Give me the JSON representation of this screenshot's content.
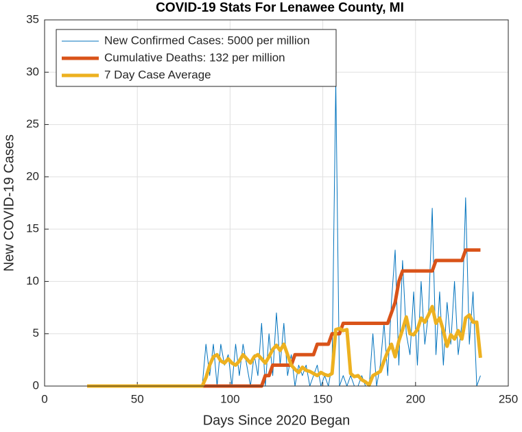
{
  "chart_data": {
    "type": "line",
    "title": "COVID-19 Stats For Lenawee County, MI",
    "x_label": "Days Since 2020 Began",
    "y_label": "New COVID-19 Cases",
    "xlim": [
      0,
      250
    ],
    "xticks": [
      0,
      50,
      100,
      150,
      200,
      250
    ],
    "ylim": [
      0,
      35
    ],
    "yticks": [
      0,
      5,
      10,
      15,
      20,
      25,
      30,
      35
    ],
    "grid": true,
    "legend_position": "upper-left",
    "x": [
      23,
      25,
      27,
      29,
      31,
      33,
      35,
      37,
      39,
      41,
      43,
      45,
      47,
      49,
      51,
      53,
      55,
      57,
      59,
      61,
      63,
      65,
      67,
      69,
      71,
      73,
      75,
      77,
      79,
      81,
      83,
      85,
      87,
      89,
      91,
      93,
      95,
      97,
      99,
      101,
      103,
      105,
      107,
      109,
      111,
      113,
      115,
      117,
      119,
      121,
      123,
      125,
      127,
      129,
      131,
      133,
      135,
      137,
      139,
      141,
      143,
      145,
      147,
      149,
      151,
      153,
      155,
      157,
      159,
      161,
      163,
      165,
      167,
      169,
      171,
      173,
      175,
      177,
      179,
      181,
      183,
      185,
      187,
      189,
      191,
      193,
      195,
      197,
      199,
      201,
      203,
      205,
      207,
      209,
      211,
      213,
      215,
      217,
      219,
      221,
      223,
      225,
      227,
      229,
      231,
      233,
      235
    ],
    "series": [
      {
        "name": "New Confirmed Cases: 5000 per million",
        "color": "#0072bd",
        "width": 1,
        "values": [
          0,
          0,
          0,
          0,
          0,
          0,
          0,
          0,
          0,
          0,
          0,
          0,
          0,
          0,
          0,
          0,
          0,
          0,
          0,
          0,
          0,
          0,
          0,
          0,
          0,
          0,
          0,
          0,
          0,
          0,
          0,
          0,
          4,
          1,
          4,
          0,
          4,
          2,
          3,
          0,
          4,
          1,
          4,
          2,
          0,
          3,
          1,
          6,
          0,
          5,
          1,
          7,
          2,
          6,
          1,
          3,
          0,
          2,
          1,
          2,
          0,
          1,
          2,
          0,
          1,
          0,
          2,
          29,
          0,
          1,
          0,
          1,
          0,
          0,
          1,
          0,
          0,
          5,
          0,
          2,
          6,
          1,
          8,
          13,
          2,
          12,
          5,
          3,
          9,
          2,
          10,
          4,
          7,
          17,
          3,
          9,
          2,
          8,
          4,
          10,
          3,
          6,
          18,
          4,
          9,
          0,
          1
        ]
      },
      {
        "name": "Cumulative Deaths: 132 per million",
        "color": "#d95319",
        "width": 5,
        "values": [
          0,
          0,
          0,
          0,
          0,
          0,
          0,
          0,
          0,
          0,
          0,
          0,
          0,
          0,
          0,
          0,
          0,
          0,
          0,
          0,
          0,
          0,
          0,
          0,
          0,
          0,
          0,
          0,
          0,
          0,
          0,
          0,
          0,
          0,
          0,
          0,
          0,
          0,
          0,
          0,
          0,
          0,
          0,
          0,
          0,
          0,
          0,
          0,
          1,
          1,
          2,
          2,
          2,
          2,
          2,
          2,
          3,
          3,
          3,
          3,
          3,
          3,
          4,
          4,
          4,
          4,
          5,
          5,
          5,
          6,
          6,
          6,
          6,
          6,
          6,
          6,
          6,
          6,
          6,
          6,
          6,
          6,
          7,
          8,
          10,
          11,
          11,
          11,
          11,
          11,
          11,
          11,
          11,
          11,
          12,
          12,
          12,
          12,
          12,
          12,
          12,
          12,
          13,
          13,
          13,
          13,
          13
        ]
      },
      {
        "name": "7 Day Case Average",
        "color": "#edb120",
        "width": 5,
        "values": [
          0,
          0,
          0,
          0,
          0,
          0,
          0,
          0,
          0,
          0,
          0,
          0,
          0,
          0,
          0,
          0,
          0,
          0,
          0,
          0,
          0,
          0,
          0,
          0,
          0,
          0,
          0,
          0,
          0,
          0,
          0,
          0,
          0.8,
          2,
          2.8,
          3,
          2.4,
          2.2,
          2.6,
          2.2,
          2,
          2.4,
          3,
          2.6,
          2.2,
          2.8,
          3,
          2.6,
          2.2,
          2.8,
          3.5,
          3.9,
          3.4,
          4,
          3,
          2,
          1.6,
          1.3,
          1.8,
          1.5,
          1.4,
          1.2,
          1,
          1.3,
          1.1,
          1,
          1.2,
          5.4,
          5.5,
          5.3,
          5.4,
          1.2,
          0.9,
          1,
          0.6,
          0.4,
          0.1,
          1,
          1.2,
          1.4,
          2.4,
          3.3,
          4,
          2.8,
          4.3,
          5.4,
          6.6,
          5,
          4.9,
          5.4,
          6.5,
          6.1,
          6.8,
          7.6,
          6,
          6.5,
          5.3,
          3.8,
          4.9,
          4.5,
          5.3,
          4.5,
          6.5,
          6.8,
          6.1,
          6.1,
          2.7
        ]
      }
    ]
  }
}
